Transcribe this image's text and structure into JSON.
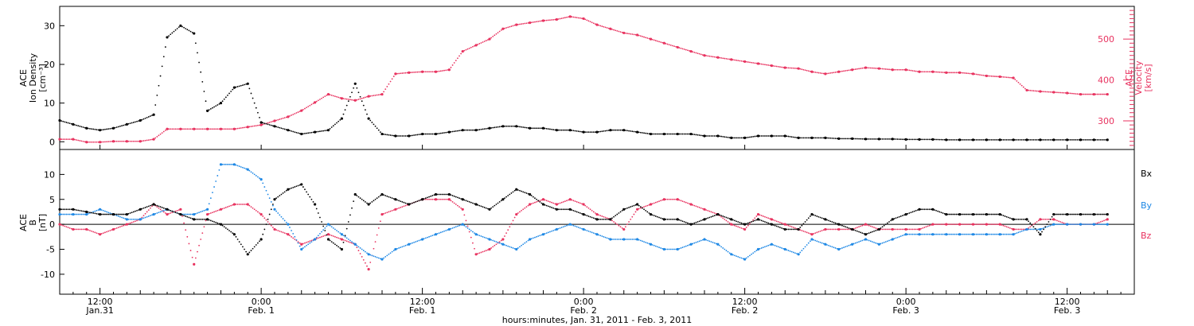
{
  "colors": {
    "black": "#000000",
    "pink": "#e8325f",
    "blue": "#1e88e5"
  },
  "chart_data": [
    {
      "type": "scatter",
      "panel": "top",
      "ylabel_left": [
        "ACE",
        "Ion Density",
        "[cm⁻³]"
      ],
      "ylabel_right": [
        "ACE",
        "Velocity",
        "[km/s]"
      ],
      "left_axis": {
        "ylim": [
          -2,
          35
        ],
        "ticks": [
          "0",
          "10",
          "20",
          "30"
        ]
      },
      "right_axis": {
        "ylim": [
          230,
          580
        ],
        "ticks": [
          "300",
          "400",
          "500"
        ]
      },
      "xlim_hours": [
        0,
        80
      ],
      "series": [
        {
          "axis": "left",
          "color": "black",
          "x": [
            0,
            1,
            2,
            3,
            4,
            5,
            6,
            7,
            8,
            9,
            10,
            11,
            12,
            13,
            14,
            15,
            16,
            17,
            18,
            19,
            20,
            21,
            22,
            23,
            24,
            25,
            26,
            27,
            28,
            29,
            30,
            31,
            32,
            33,
            34,
            35,
            36,
            37,
            38,
            39,
            40,
            41,
            42,
            43,
            44,
            45,
            46,
            47,
            48,
            49,
            50,
            51,
            52,
            53,
            54,
            55,
            56,
            57,
            58,
            59,
            60,
            61,
            62,
            63,
            64,
            65,
            66,
            67,
            68,
            69,
            70,
            71,
            72,
            73,
            74,
            75,
            76,
            77,
            78
          ],
          "y": [
            5.5,
            4.5,
            3.5,
            3.0,
            3.5,
            4.5,
            5.5,
            7.0,
            27.0,
            30.0,
            28.0,
            8.0,
            10.0,
            14.0,
            15.0,
            5.0,
            4.0,
            3.0,
            2.0,
            2.5,
            3.0,
            6.0,
            15.0,
            6.0,
            2.0,
            1.5,
            1.5,
            2.0,
            2.0,
            2.5,
            3.0,
            3.0,
            3.5,
            4.0,
            4.0,
            3.5,
            3.5,
            3.0,
            3.0,
            2.5,
            2.5,
            3.0,
            3.0,
            2.5,
            2.0,
            2.0,
            2.0,
            2.0,
            1.5,
            1.5,
            1.0,
            1.0,
            1.5,
            1.5,
            1.5,
            1.0,
            1.0,
            1.0,
            0.8,
            0.8,
            0.7,
            0.7,
            0.7,
            0.6,
            0.6,
            0.6,
            0.5,
            0.5,
            0.5,
            0.5,
            0.5,
            0.5,
            0.5,
            0.5,
            0.5,
            0.5,
            0.5,
            0.5,
            0.5
          ]
        },
        {
          "axis": "right",
          "color": "pink",
          "x": [
            0,
            1,
            2,
            3,
            4,
            5,
            6,
            7,
            8,
            9,
            10,
            11,
            12,
            13,
            14,
            15,
            16,
            17,
            18,
            19,
            20,
            21,
            22,
            23,
            24,
            25,
            26,
            27,
            28,
            29,
            30,
            31,
            32,
            33,
            34,
            35,
            36,
            37,
            38,
            39,
            40,
            41,
            42,
            43,
            44,
            45,
            46,
            47,
            48,
            49,
            50,
            51,
            52,
            53,
            54,
            55,
            56,
            57,
            58,
            59,
            60,
            61,
            62,
            63,
            64,
            65,
            66,
            67,
            68,
            69,
            70,
            71,
            72,
            73,
            74,
            75,
            76,
            77,
            78
          ],
          "y": [
            255,
            255,
            248,
            248,
            250,
            250,
            250,
            255,
            280,
            280,
            280,
            280,
            280,
            280,
            285,
            290,
            300,
            310,
            325,
            345,
            365,
            355,
            350,
            360,
            365,
            415,
            418,
            420,
            420,
            425,
            470,
            485,
            500,
            525,
            535,
            540,
            545,
            548,
            555,
            550,
            535,
            525,
            515,
            510,
            500,
            490,
            480,
            470,
            460,
            455,
            450,
            445,
            440,
            435,
            430,
            428,
            420,
            415,
            420,
            425,
            430,
            428,
            425,
            425,
            420,
            420,
            418,
            418,
            415,
            410,
            408,
            405,
            375,
            372,
            370,
            368,
            365,
            365,
            365
          ]
        }
      ]
    },
    {
      "type": "scatter",
      "panel": "bottom",
      "ylabel_left": [
        "ACE",
        "B",
        "[nT]"
      ],
      "left_axis": {
        "ylim": [
          -14,
          15
        ],
        "ticks": [
          "-10",
          "-5",
          "0",
          "5",
          "10"
        ]
      },
      "xlim_hours": [
        0,
        80
      ],
      "legend": [
        "Bx",
        "By",
        "Bz"
      ],
      "legend_placement": "right",
      "series": [
        {
          "name": "Bx",
          "color": "black",
          "x": [
            0,
            1,
            2,
            3,
            4,
            5,
            6,
            7,
            8,
            9,
            10,
            11,
            12,
            13,
            14,
            15,
            16,
            17,
            18,
            19,
            20,
            21,
            22,
            23,
            24,
            25,
            26,
            27,
            28,
            29,
            30,
            31,
            32,
            33,
            34,
            35,
            36,
            37,
            38,
            39,
            40,
            41,
            42,
            43,
            44,
            45,
            46,
            47,
            48,
            49,
            50,
            51,
            52,
            53,
            54,
            55,
            56,
            57,
            58,
            59,
            60,
            61,
            62,
            63,
            64,
            65,
            66,
            67,
            68,
            69,
            70,
            71,
            72,
            73,
            74,
            75,
            76,
            77,
            78
          ],
          "y": [
            3,
            3,
            2.5,
            2,
            2,
            2,
            3,
            4,
            3,
            2,
            1,
            1,
            0,
            -2,
            -6,
            -3,
            5,
            7,
            8,
            4,
            -3,
            -5,
            6,
            4,
            6,
            5,
            4,
            5,
            6,
            6,
            5,
            4,
            3,
            5,
            7,
            6,
            4,
            3,
            3,
            2,
            1,
            1,
            3,
            4,
            2,
            1,
            1,
            0,
            1,
            2,
            1,
            0,
            1,
            0,
            -1,
            -1,
            2,
            1,
            0,
            -1,
            -2,
            -1,
            1,
            2,
            3,
            3,
            2,
            2,
            2,
            2,
            2,
            1,
            1,
            -2,
            2,
            2,
            2,
            2,
            2
          ]
        },
        {
          "name": "By",
          "color": "blue",
          "x": [
            0,
            1,
            2,
            3,
            4,
            5,
            6,
            7,
            8,
            9,
            10,
            11,
            12,
            13,
            14,
            15,
            16,
            17,
            18,
            19,
            20,
            21,
            22,
            23,
            24,
            25,
            26,
            27,
            28,
            29,
            30,
            31,
            32,
            33,
            34,
            35,
            36,
            37,
            38,
            39,
            40,
            41,
            42,
            43,
            44,
            45,
            46,
            47,
            48,
            49,
            50,
            51,
            52,
            53,
            54,
            55,
            56,
            57,
            58,
            59,
            60,
            61,
            62,
            63,
            64,
            65,
            66,
            67,
            68,
            69,
            70,
            71,
            72,
            73,
            74,
            75,
            76,
            77,
            78
          ],
          "y": [
            2,
            2,
            2,
            3,
            2,
            1,
            1,
            2,
            3,
            2,
            2,
            3,
            12,
            12,
            11,
            9,
            3,
            0,
            -5,
            -3,
            0,
            -2,
            -4,
            -6,
            -7,
            -5,
            -4,
            -3,
            -2,
            -1,
            0,
            -2,
            -3,
            -4,
            -5,
            -3,
            -2,
            -1,
            0,
            -1,
            -2,
            -3,
            -3,
            -3,
            -4,
            -5,
            -5,
            -4,
            -3,
            -4,
            -6,
            -7,
            -5,
            -4,
            -5,
            -6,
            -3,
            -4,
            -5,
            -4,
            -3,
            -4,
            -3,
            -2,
            -2,
            -2,
            -2,
            -2,
            -2,
            -2,
            -2,
            -2,
            -1,
            -1,
            0,
            0,
            0,
            0,
            0
          ]
        },
        {
          "name": "Bz",
          "color": "pink",
          "x": [
            0,
            1,
            2,
            3,
            4,
            5,
            6,
            7,
            8,
            9,
            10,
            11,
            12,
            13,
            14,
            15,
            16,
            17,
            18,
            19,
            20,
            21,
            22,
            23,
            24,
            25,
            26,
            27,
            28,
            29,
            30,
            31,
            32,
            33,
            34,
            35,
            36,
            37,
            38,
            39,
            40,
            41,
            42,
            43,
            44,
            45,
            46,
            47,
            48,
            49,
            50,
            51,
            52,
            53,
            54,
            55,
            56,
            57,
            58,
            59,
            60,
            61,
            62,
            63,
            64,
            65,
            66,
            67,
            68,
            69,
            70,
            71,
            72,
            73,
            74,
            75,
            76,
            77,
            78
          ],
          "y": [
            0,
            -1,
            -1,
            -2,
            -1,
            0,
            1,
            4,
            2,
            3,
            -8,
            2,
            3,
            4,
            4,
            2,
            -1,
            -2,
            -4,
            -3,
            -2,
            -3,
            -4,
            -9,
            2,
            3,
            4,
            5,
            5,
            5,
            3,
            -6,
            -5,
            -3,
            2,
            4,
            5,
            4,
            5,
            4,
            2,
            1,
            -1,
            3,
            4,
            5,
            5,
            4,
            3,
            2,
            0,
            -1,
            2,
            1,
            0,
            -1,
            -2,
            -1,
            -1,
            -1,
            0,
            -1,
            -1,
            -1,
            -1,
            0,
            0,
            0,
            0,
            0,
            0,
            -1,
            -1,
            1,
            1,
            0,
            0,
            0,
            1
          ]
        }
      ]
    }
  ],
  "x_axis": {
    "ticks": [
      {
        "h": 3,
        "time": "12:00",
        "date": "Jan.31"
      },
      {
        "h": 15,
        "time": "0:00",
        "date": "Feb. 1"
      },
      {
        "h": 27,
        "time": "12:00",
        "date": "Feb. 1"
      },
      {
        "h": 39,
        "time": "0:00",
        "date": "Feb. 2"
      },
      {
        "h": 51,
        "time": "12:00",
        "date": "Feb. 2"
      },
      {
        "h": 63,
        "time": "0:00",
        "date": "Feb. 3"
      },
      {
        "h": 75,
        "time": "12:00",
        "date": "Feb. 3"
      }
    ],
    "title": "hours:minutes, Jan. 31, 2011 - Feb. 3, 2011"
  }
}
